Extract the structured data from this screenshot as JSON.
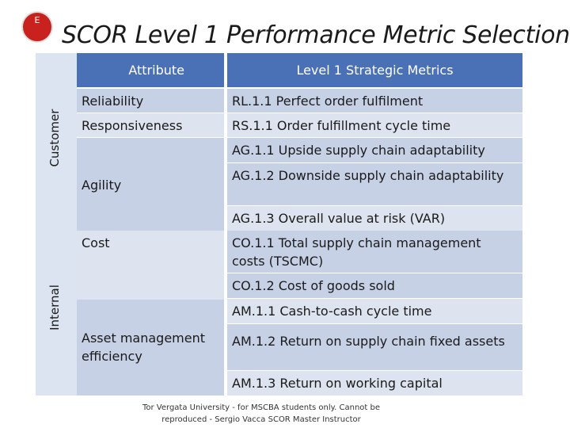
{
  "logo": {
    "text": "E"
  },
  "title": "SCOR Level 1 Performance Metric Selection",
  "headers": {
    "attribute": "Attribute",
    "metrics": "Level 1 Strategic Metrics"
  },
  "sections": {
    "customer": "Customer",
    "internal": "Internal"
  },
  "attributes": {
    "reliability": "Reliability",
    "responsiveness": "Responsiveness",
    "agility": "Agility",
    "cost": "Cost",
    "asset": "Asset management efficiency"
  },
  "metrics": {
    "rl11": "RL.1.1 Perfect order fulfilment",
    "rs11": "RS.1.1 Order fulfillment cycle time",
    "ag11": "AG.1.1 Upside supply chain adaptability",
    "ag12": "AG.1.2 Downside supply chain adaptability",
    "ag13": "AG.1.3 Overall value at risk (VAR)",
    "co11": "CO.1.1 Total supply chain management costs (TSCMC)",
    "co12": "CO.1.2 Cost of goods sold",
    "am11": "AM.1.1 Cash-to-cash cycle time",
    "am12": "AM.1.2 Return on supply chain fixed assets",
    "am13": "AM.1.3 Return on working capital"
  },
  "footer": "Tor Vergata University - for MSCBA students only. Cannot be reproduced - Sergio Vacca SCOR Master Instructor"
}
